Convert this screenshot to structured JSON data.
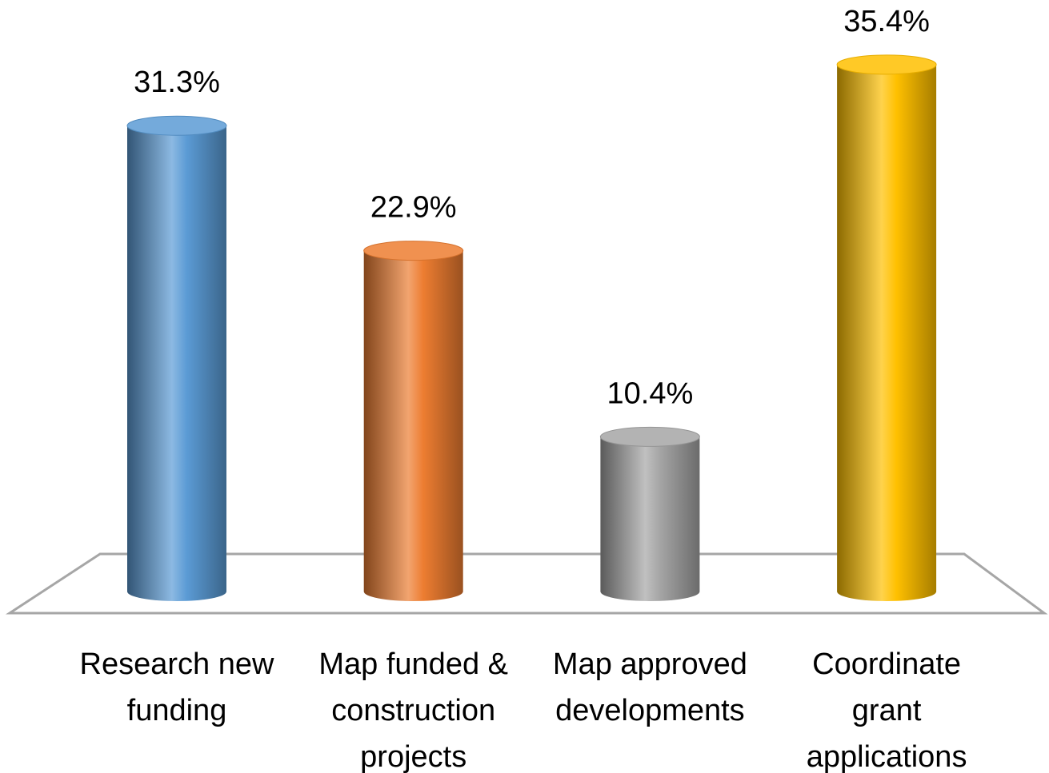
{
  "chart_data": {
    "type": "bar",
    "categories": [
      "Research new funding",
      "Map funded & construction projects",
      "Map approved developments",
      "Coordinate grant applications"
    ],
    "values": [
      31.3,
      22.9,
      10.4,
      35.4
    ],
    "value_labels": [
      "31.3%",
      "22.9%",
      "10.4%",
      "35.4%"
    ],
    "colors": [
      "#5b9bd5",
      "#ed7d31",
      "#a5a5a5",
      "#ffc000"
    ]
  }
}
